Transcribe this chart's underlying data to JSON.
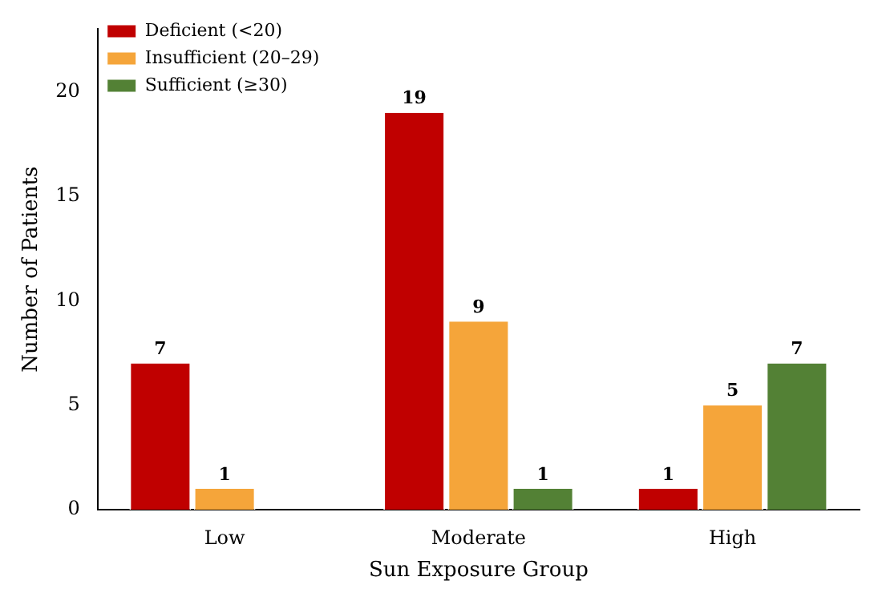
{
  "chart_data": {
    "type": "bar",
    "xlabel": "Sun Exposure Group",
    "ylabel": "Number of Patients",
    "categories": [
      "Low",
      "Moderate",
      "High"
    ],
    "series": [
      {
        "name": "Deficient (<20)",
        "color": "#c00000",
        "values": [
          7,
          19,
          1
        ],
        "value_labels": [
          "7",
          "19",
          "1"
        ]
      },
      {
        "name": "Insufficient (20–29)",
        "color": "#f5a53a",
        "values": [
          1,
          9,
          5
        ],
        "value_labels": [
          "1",
          "9",
          "5"
        ]
      },
      {
        "name": "Sufficient (≥30)",
        "color": "#538135",
        "values": [
          0,
          1,
          7
        ],
        "value_labels": [
          null,
          "1",
          "7"
        ]
      }
    ],
    "ylim": [
      0,
      23
    ],
    "yticks": [
      0,
      5,
      10,
      15,
      20
    ],
    "grid": false,
    "legend": "top left"
  }
}
